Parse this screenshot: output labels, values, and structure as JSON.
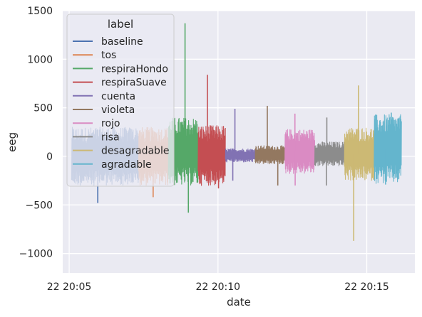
{
  "chart_data": {
    "type": "line",
    "title": "",
    "xlabel": "date",
    "ylabel": "eeg",
    "x_range": [
      "22 20:04:47",
      "22 20:16:37"
    ],
    "ylim": [
      -1200,
      1500
    ],
    "x_ticks": [
      {
        "value": "22 20:05:00",
        "label": "22 20:05"
      },
      {
        "value": "22 20:10:00",
        "label": "22 20:10"
      },
      {
        "value": "22 20:15:00",
        "label": "22 20:15"
      }
    ],
    "y_ticks": [
      {
        "value": 1500,
        "label": "1500"
      },
      {
        "value": 1000,
        "label": "1000"
      },
      {
        "value": 500,
        "label": "500"
      },
      {
        "value": 0,
        "label": "0"
      },
      {
        "value": -500,
        "label": "−500"
      },
      {
        "value": -1000,
        "label": "−1000"
      }
    ],
    "grid": true,
    "legend": {
      "title": "label",
      "placement": "top-left"
    },
    "series": [
      {
        "name": "baseline",
        "color": "#4c72b0",
        "x_start": "22 20:05:05",
        "x_end": "22 20:07:20",
        "band": [
          -300,
          300
        ],
        "min": -480,
        "max": 220
      },
      {
        "name": "tos",
        "color": "#dd8452",
        "x_start": "22 20:07:20",
        "x_end": "22 20:08:20",
        "band": [
          -300,
          300
        ],
        "min": -420,
        "max": 250
      },
      {
        "name": "respiraHondo",
        "color": "#55a868",
        "x_start": "22 20:08:20",
        "x_end": "22 20:09:20",
        "band": [
          -300,
          400
        ],
        "min": -580,
        "max": 1370
      },
      {
        "name": "respiraSuave",
        "color": "#c44e52",
        "x_start": "22 20:09:20",
        "x_end": "22 20:10:15",
        "band": [
          -300,
          320
        ],
        "min": -330,
        "max": 840
      },
      {
        "name": "cuenta",
        "color": "#8172b3",
        "x_start": "22 20:10:15",
        "x_end": "22 20:11:15",
        "band": [
          -60,
          80
        ],
        "min": -250,
        "max": 490
      },
      {
        "name": "violeta",
        "color": "#937860",
        "x_start": "22 20:11:15",
        "x_end": "22 20:12:15",
        "band": [
          -80,
          110
        ],
        "min": -300,
        "max": 520
      },
      {
        "name": "rojo",
        "color": "#da8bc3",
        "x_start": "22 20:12:15",
        "x_end": "22 20:13:15",
        "band": [
          -180,
          280
        ],
        "min": -300,
        "max": 440
      },
      {
        "name": "risa",
        "color": "#8c8c8c",
        "x_start": "22 20:13:15",
        "x_end": "22 20:14:15",
        "band": [
          -100,
          150
        ],
        "min": -300,
        "max": 400
      },
      {
        "name": "desagradable",
        "color": "#ccb974",
        "x_start": "22 20:14:15",
        "x_end": "22 20:15:15",
        "band": [
          -250,
          300
        ],
        "min": -870,
        "max": 730
      },
      {
        "name": "agradable",
        "color": "#64b5cd",
        "x_start": "22 20:15:15",
        "x_end": "22 20:16:10",
        "band": [
          -280,
          430
        ],
        "min": -290,
        "max": 450
      }
    ]
  }
}
